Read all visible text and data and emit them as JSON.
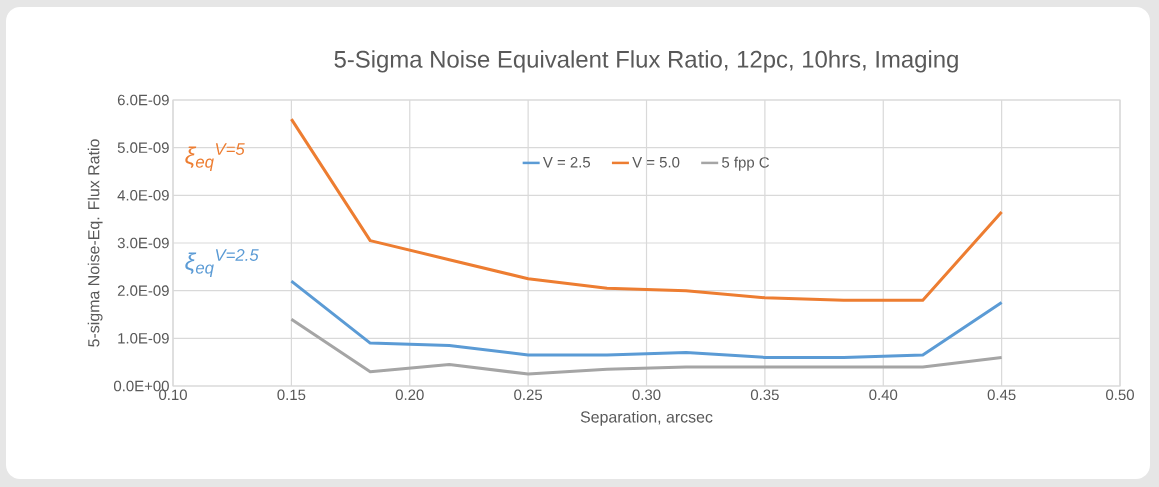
{
  "chart_data": {
    "type": "line",
    "title": "5-Sigma Noise Equivalent Flux Ratio, 12pc, 10hrs, Imaging",
    "xlabel": "Separation, arcsec",
    "ylabel": "5-sigma Noise-Eq. Flux Ratio",
    "x": [
      0.15,
      0.1833,
      0.2167,
      0.25,
      0.2833,
      0.3167,
      0.35,
      0.3833,
      0.4167,
      0.45
    ],
    "series": [
      {
        "name": "V = 2.5",
        "color": "#5b9bd5",
        "values": [
          2.2e-09,
          9e-10,
          8.5e-10,
          6.5e-10,
          6.5e-10,
          7e-10,
          6e-10,
          6e-10,
          6.5e-10,
          1.75e-09
        ]
      },
      {
        "name": "V = 5.0",
        "color": "#ed7d31",
        "values": [
          5.6e-09,
          3.05e-09,
          2.65e-09,
          2.25e-09,
          2.05e-09,
          2e-09,
          1.85e-09,
          1.8e-09,
          1.8e-09,
          3.65e-09
        ]
      },
      {
        "name": "5 fpp C",
        "color": "#a5a5a5",
        "values": [
          1.4e-09,
          3e-10,
          4.5e-10,
          2.5e-10,
          3.5e-10,
          4e-10,
          4e-10,
          4e-10,
          4e-10,
          6e-10
        ]
      }
    ],
    "annotations": [
      "ξ$_{eq}$$^{V=2.5}$",
      "ξ$_{eq}$$^{V=5}$"
    ],
    "xlim": [
      0.1,
      0.5
    ],
    "xticks": [
      {
        "value": 0.1,
        "label": "0.10"
      },
      {
        "value": 0.15,
        "label": "0.15"
      },
      {
        "value": 0.2,
        "label": "0.20"
      },
      {
        "value": 0.25,
        "label": "0.25"
      },
      {
        "value": 0.3,
        "label": "0.30"
      },
      {
        "value": 0.35,
        "label": "0.35"
      },
      {
        "value": 0.4,
        "label": "0.40"
      },
      {
        "value": 0.45,
        "label": "0.45"
      },
      {
        "value": 0.5,
        "label": "0.50"
      }
    ],
    "ylim": [
      0,
      6e-09
    ],
    "yticks": [
      {
        "value": 0,
        "label": "0.0E+00"
      },
      {
        "value": 1e-09,
        "label": "1.0E-09"
      },
      {
        "value": 2e-09,
        "label": "2.0E-09"
      },
      {
        "value": 3e-09,
        "label": "3.0E-09"
      },
      {
        "value": 4e-09,
        "label": "4.0E-09"
      },
      {
        "value": 5e-09,
        "label": "5.0E-09"
      },
      {
        "value": 6e-09,
        "label": "6.0E-09"
      }
    ],
    "grid": true,
    "legend": "top",
    "marker": "none",
    "line_style": "solid"
  }
}
